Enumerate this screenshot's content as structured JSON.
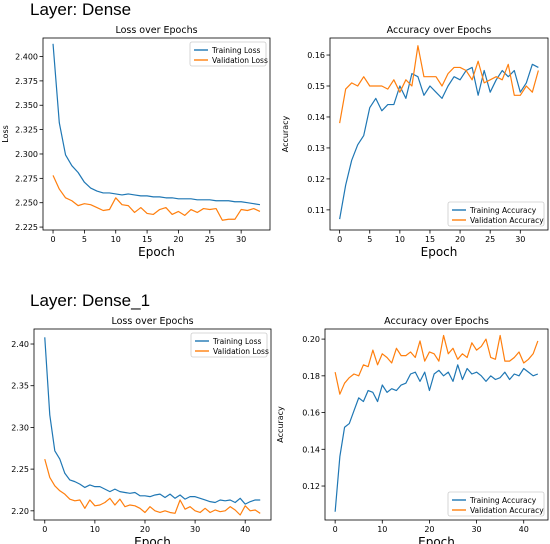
{
  "layers": [
    {
      "title": "Layer: Dense",
      "charts": [
        {
          "type": "line",
          "title": "Loss over Epochs",
          "xlabel": "Epoch",
          "ylabel": "Loss",
          "xlim": [
            -1.6,
            34.6
          ],
          "ylim": [
            2.222,
            2.419
          ],
          "xticks": [
            0,
            5,
            10,
            15,
            20,
            25,
            30
          ],
          "yticks": [
            2.225,
            2.25,
            2.275,
            2.3,
            2.325,
            2.35,
            2.375,
            2.4
          ],
          "ytick_labels": [
            "2.225",
            "2.250",
            "2.275",
            "2.300",
            "2.325",
            "2.350",
            "2.375",
            "2.400"
          ],
          "legend_position": "top-right",
          "x": [
            0,
            1,
            2,
            3,
            4,
            5,
            6,
            7,
            8,
            9,
            10,
            11,
            12,
            13,
            14,
            15,
            16,
            17,
            18,
            19,
            20,
            21,
            22,
            23,
            24,
            25,
            26,
            27,
            28,
            29,
            30,
            31,
            32,
            33
          ],
          "series": [
            {
              "name": "Training Loss",
              "color": "#1f77b4",
              "values": [
                2.413,
                2.332,
                2.299,
                2.288,
                2.281,
                2.271,
                2.265,
                2.262,
                2.26,
                2.26,
                2.259,
                2.258,
                2.259,
                2.258,
                2.257,
                2.257,
                2.256,
                2.256,
                2.255,
                2.255,
                2.254,
                2.254,
                2.254,
                2.253,
                2.253,
                2.253,
                2.252,
                2.252,
                2.252,
                2.251,
                2.251,
                2.25,
                2.249,
                2.248
              ]
            },
            {
              "name": "Validation Loss",
              "color": "#ff7f0e",
              "values": [
                2.278,
                2.264,
                2.255,
                2.252,
                2.247,
                2.249,
                2.248,
                2.245,
                2.242,
                2.243,
                2.255,
                2.248,
                2.247,
                2.24,
                2.245,
                2.239,
                2.238,
                2.243,
                2.245,
                2.238,
                2.241,
                2.237,
                2.243,
                2.24,
                2.244,
                2.243,
                2.244,
                2.232,
                2.233,
                2.233,
                2.243,
                2.242,
                2.244,
                2.241
              ]
            }
          ]
        },
        {
          "type": "line",
          "title": "Accuracy over Epochs",
          "xlabel": "Epoch",
          "ylabel": "Accuracy",
          "xlim": [
            -1.6,
            34.6
          ],
          "ylim": [
            0.1035,
            0.1655
          ],
          "xticks": [
            0,
            5,
            10,
            15,
            20,
            25,
            30
          ],
          "yticks": [
            0.11,
            0.12,
            0.13,
            0.14,
            0.15,
            0.16
          ],
          "ytick_labels": [
            "0.11",
            "0.12",
            "0.13",
            "0.14",
            "0.15",
            "0.16"
          ],
          "legend_position": "bottom-right",
          "x": [
            0,
            1,
            2,
            3,
            4,
            5,
            6,
            7,
            8,
            9,
            10,
            11,
            12,
            13,
            14,
            15,
            16,
            17,
            18,
            19,
            20,
            21,
            22,
            23,
            24,
            25,
            26,
            27,
            28,
            29,
            30,
            31,
            32,
            33
          ],
          "series": [
            {
              "name": "Training Accuracy",
              "color": "#1f77b4",
              "values": [
                0.107,
                0.118,
                0.126,
                0.131,
                0.134,
                0.143,
                0.146,
                0.142,
                0.144,
                0.144,
                0.15,
                0.146,
                0.154,
                0.153,
                0.147,
                0.15,
                0.148,
                0.146,
                0.15,
                0.153,
                0.152,
                0.155,
                0.156,
                0.147,
                0.155,
                0.148,
                0.152,
                0.155,
                0.153,
                0.155,
                0.148,
                0.151,
                0.157,
                0.156
              ]
            },
            {
              "name": "Validation Accuracy",
              "color": "#ff7f0e",
              "values": [
                0.138,
                0.149,
                0.151,
                0.15,
                0.153,
                0.15,
                0.15,
                0.15,
                0.149,
                0.152,
                0.148,
                0.152,
                0.15,
                0.163,
                0.153,
                0.153,
                0.153,
                0.15,
                0.154,
                0.156,
                0.156,
                0.155,
                0.152,
                0.158,
                0.151,
                0.152,
                0.153,
                0.152,
                0.157,
                0.147,
                0.147,
                0.15,
                0.148,
                0.155
              ]
            }
          ]
        }
      ]
    },
    {
      "title": "Layer: Dense_1",
      "charts": [
        {
          "type": "line",
          "title": "Loss over Epochs",
          "xlabel": "Epoch",
          "ylabel": "Loss",
          "xlim": [
            -2.15,
            45.15
          ],
          "ylim": [
            2.189,
            2.418
          ],
          "xticks": [
            0,
            10,
            20,
            30,
            40
          ],
          "yticks": [
            2.2,
            2.25,
            2.3,
            2.35,
            2.4
          ],
          "ytick_labels": [
            "2.20",
            "2.25",
            "2.30",
            "2.35",
            "2.40"
          ],
          "legend_position": "top-right",
          "x": [
            0,
            1,
            2,
            3,
            4,
            5,
            6,
            7,
            8,
            9,
            10,
            11,
            12,
            13,
            14,
            15,
            16,
            17,
            18,
            19,
            20,
            21,
            22,
            23,
            24,
            25,
            26,
            27,
            28,
            29,
            30,
            31,
            32,
            33,
            34,
            35,
            36,
            37,
            38,
            39,
            40,
            41,
            42,
            43
          ],
          "series": [
            {
              "name": "Training Loss",
              "color": "#1f77b4",
              "values": [
                2.408,
                2.315,
                2.272,
                2.262,
                2.245,
                2.237,
                2.235,
                2.232,
                2.228,
                2.231,
                2.229,
                2.229,
                2.226,
                2.223,
                2.226,
                2.223,
                2.222,
                2.221,
                2.222,
                2.218,
                2.218,
                2.217,
                2.219,
                2.22,
                2.216,
                2.22,
                2.215,
                2.219,
                2.214,
                2.217,
                2.217,
                2.215,
                2.213,
                2.211,
                2.21,
                2.213,
                2.212,
                2.213,
                2.21,
                2.215,
                2.208,
                2.211,
                2.213,
                2.213
              ]
            },
            {
              "name": "Validation Loss",
              "color": "#ff7f0e",
              "values": [
                2.262,
                2.24,
                2.23,
                2.224,
                2.22,
                2.214,
                2.212,
                2.213,
                2.203,
                2.213,
                2.206,
                2.207,
                2.21,
                2.215,
                2.207,
                2.214,
                2.205,
                2.207,
                2.206,
                2.203,
                2.198,
                2.205,
                2.2,
                2.198,
                2.2,
                2.198,
                2.197,
                2.213,
                2.202,
                2.205,
                2.2,
                2.198,
                2.203,
                2.198,
                2.201,
                2.199,
                2.2,
                2.205,
                2.201,
                2.195,
                2.206,
                2.2,
                2.201,
                2.197
              ]
            }
          ]
        },
        {
          "type": "line",
          "title": "Accuracy over Epochs",
          "xlabel": "Epoch",
          "ylabel": "Accuracy",
          "xlim": [
            -2.15,
            45.15
          ],
          "ylim": [
            0.1015,
            0.2055
          ],
          "xticks": [
            0,
            10,
            20,
            30,
            40
          ],
          "yticks": [
            0.12,
            0.14,
            0.16,
            0.18,
            0.2
          ],
          "ytick_labels": [
            "0.12",
            "0.14",
            "0.16",
            "0.18",
            "0.20"
          ],
          "legend_position": "bottom-right",
          "x": [
            0,
            1,
            2,
            3,
            4,
            5,
            6,
            7,
            8,
            9,
            10,
            11,
            12,
            13,
            14,
            15,
            16,
            17,
            18,
            19,
            20,
            21,
            22,
            23,
            24,
            25,
            26,
            27,
            28,
            29,
            30,
            31,
            32,
            33,
            34,
            35,
            36,
            37,
            38,
            39,
            40,
            41,
            42,
            43
          ],
          "series": [
            {
              "name": "Training Accuracy",
              "color": "#1f77b4",
              "values": [
                0.106,
                0.136,
                0.152,
                0.154,
                0.161,
                0.168,
                0.166,
                0.172,
                0.171,
                0.166,
                0.175,
                0.171,
                0.173,
                0.172,
                0.175,
                0.176,
                0.181,
                0.182,
                0.177,
                0.182,
                0.172,
                0.181,
                0.183,
                0.18,
                0.182,
                0.177,
                0.186,
                0.178,
                0.184,
                0.181,
                0.182,
                0.18,
                0.177,
                0.18,
                0.178,
                0.179,
                0.182,
                0.178,
                0.181,
                0.18,
                0.184,
                0.182,
                0.18,
                0.181
              ]
            },
            {
              "name": "Validation Accuracy",
              "color": "#ff7f0e",
              "values": [
                0.182,
                0.17,
                0.176,
                0.179,
                0.181,
                0.18,
                0.186,
                0.185,
                0.194,
                0.186,
                0.192,
                0.19,
                0.187,
                0.195,
                0.191,
                0.191,
                0.193,
                0.19,
                0.199,
                0.188,
                0.193,
                0.192,
                0.188,
                0.202,
                0.192,
                0.195,
                0.189,
                0.192,
                0.19,
                0.198,
                0.194,
                0.196,
                0.2,
                0.19,
                0.189,
                0.202,
                0.188,
                0.188,
                0.19,
                0.193,
                0.187,
                0.189,
                0.192,
                0.199
              ]
            }
          ]
        }
      ]
    }
  ],
  "chart_data": [
    {
      "type": "line",
      "title": "Loss over Epochs",
      "xlabel": "Epoch",
      "ylabel": "Loss",
      "ylim": [
        2.222,
        2.419
      ],
      "series": [
        "Training Loss",
        "Validation Loss"
      ],
      "legend": "top-right"
    },
    {
      "type": "line",
      "title": "Accuracy over Epochs",
      "xlabel": "Epoch",
      "ylabel": "Accuracy",
      "ylim": [
        0.1035,
        0.1655
      ],
      "series": [
        "Training Accuracy",
        "Validation Accuracy"
      ],
      "legend": "bottom-right"
    },
    {
      "type": "line",
      "title": "Loss over Epochs",
      "xlabel": "Epoch",
      "ylabel": "Loss",
      "ylim": [
        2.189,
        2.418
      ],
      "series": [
        "Training Loss",
        "Validation Loss"
      ],
      "legend": "top-right"
    },
    {
      "type": "line",
      "title": "Accuracy over Epochs",
      "xlabel": "Epoch",
      "ylabel": "Accuracy",
      "ylim": [
        0.1015,
        0.2055
      ],
      "series": [
        "Training Accuracy",
        "Validation Accuracy"
      ],
      "legend": "bottom-right"
    }
  ]
}
